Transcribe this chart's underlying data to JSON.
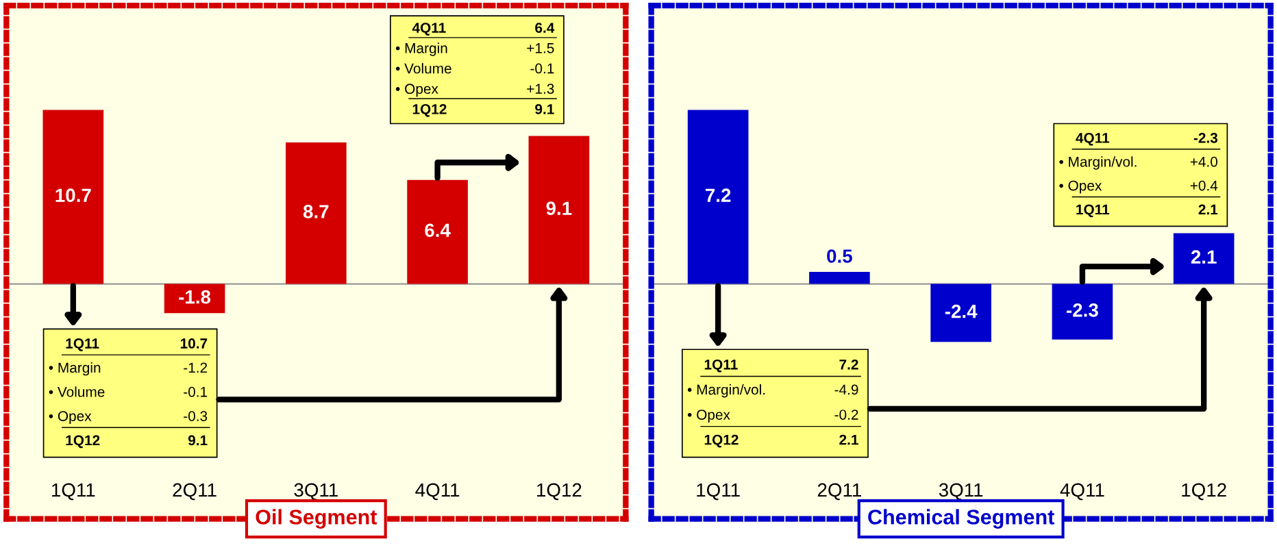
{
  "chart_data": [
    {
      "type": "bar",
      "title": "Oil Segment",
      "categories": [
        "1Q11",
        "2Q11",
        "3Q11",
        "4Q11",
        "1Q12"
      ],
      "values": [
        10.7,
        -1.8,
        8.7,
        6.4,
        9.1
      ],
      "color": "#d40000",
      "data_labels": true,
      "grid": false,
      "annotations": [
        "1Q11 10.7\n• Margin -1.2\n• Volume -0.1\n• Opex -0.3\n1Q12 9.1",
        "4Q11 6.4\n• Margin +1.5\n• Volume -0.1\n• Opex +1.3\n1Q12 9.1"
      ]
    },
    {
      "type": "bar",
      "title": "Chemical Segment",
      "categories": [
        "1Q11",
        "2Q11",
        "3Q11",
        "4Q11",
        "1Q12"
      ],
      "values": [
        7.2,
        0.5,
        -2.4,
        -2.3,
        2.1
      ],
      "color": "#0000cc",
      "data_labels": true,
      "grid": false,
      "annotations": [
        "1Q11 7.2\n• Margin/vol. -4.9\n• Opex -0.2\n1Q12 2.1",
        "4Q11 -2.3\n• Margin/vol. +4.0\n• Opex +0.4\n1Q11 2.1"
      ]
    }
  ]
}
